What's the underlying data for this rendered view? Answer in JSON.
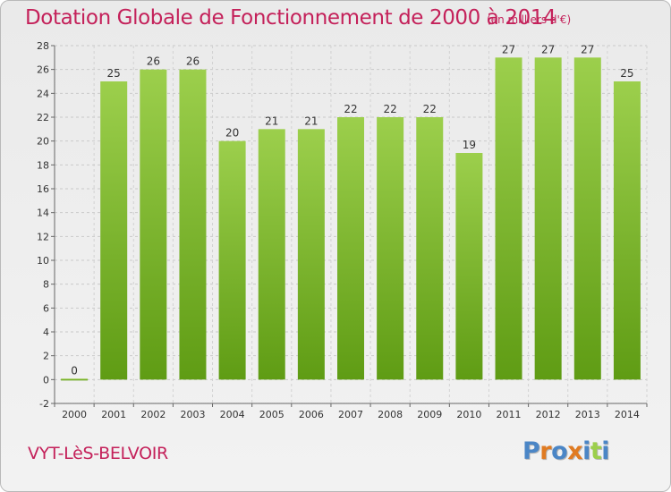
{
  "header": {
    "title": "Dotation Globale de Fonctionnement de 2000 à 2014",
    "subtitle": "(en milliers d'€)"
  },
  "footer": {
    "commune": "VYT-LèS-BELVOIR",
    "logo_text": "Proxiti"
  },
  "colors": {
    "title": "#c4215a",
    "bar_light": "#9ccf4c",
    "bar_dark": "#5f9c14",
    "logo": [
      "#4b86c6",
      "#e07b22",
      "#4b86c6",
      "#e07b22",
      "#4b86c6",
      "#9ccf4c",
      "#4b86c6"
    ]
  },
  "chart_data": {
    "type": "bar",
    "title": "Dotation Globale de Fonctionnement de 2000 à 2014",
    "subtitle": "(en milliers d'€)",
    "categories": [
      "2000",
      "2001",
      "2002",
      "2003",
      "2004",
      "2005",
      "2006",
      "2007",
      "2008",
      "2009",
      "2010",
      "2011",
      "2012",
      "2013",
      "2014"
    ],
    "values": [
      0,
      25,
      26,
      26,
      20,
      21,
      21,
      22,
      22,
      22,
      19,
      27,
      27,
      27,
      25
    ],
    "data_labels": [
      "0",
      "25",
      "26",
      "26",
      "20",
      "21",
      "21",
      "22",
      "22",
      "22",
      "19",
      "27",
      "27",
      "27",
      "25"
    ],
    "ylim": [
      -2,
      28
    ],
    "yticks": [
      -2,
      0,
      2,
      4,
      6,
      8,
      10,
      12,
      14,
      16,
      18,
      20,
      22,
      24,
      26,
      28
    ],
    "grid": true,
    "legend": "none"
  }
}
